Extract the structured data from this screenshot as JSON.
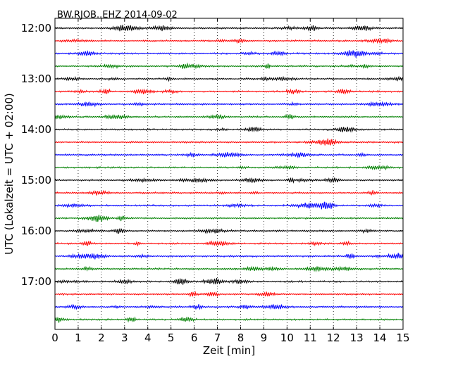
{
  "chart_data": {
    "type": "line",
    "title": "BW.RJOB..EHZ 2014-09-02",
    "xlabel": "Zeit  [min]",
    "ylabel": "UTC (Lokalzeit = UTC + 02:00)",
    "xlim": [
      0,
      15
    ],
    "xticks": [
      "0",
      "1",
      "2",
      "3",
      "4",
      "5",
      "6",
      "7",
      "8",
      "9",
      "10",
      "11",
      "12",
      "13",
      "14",
      "15"
    ],
    "yticks": [
      "12:00",
      "13:00",
      "14:00",
      "15:00",
      "16:00",
      "17:00"
    ],
    "grid": "vertical-dotted",
    "trace_colors": [
      "#000000",
      "#ff0000",
      "#0000ff",
      "#008000"
    ],
    "traces": [
      {
        "start": "12:00"
      },
      {
        "start": "12:15"
      },
      {
        "start": "12:30"
      },
      {
        "start": "12:45"
      },
      {
        "start": "13:00"
      },
      {
        "start": "13:15"
      },
      {
        "start": "13:30"
      },
      {
        "start": "13:45"
      },
      {
        "start": "14:00"
      },
      {
        "start": "14:15"
      },
      {
        "start": "14:30"
      },
      {
        "start": "14:45"
      },
      {
        "start": "15:00"
      },
      {
        "start": "15:15"
      },
      {
        "start": "15:30"
      },
      {
        "start": "15:45"
      },
      {
        "start": "16:00"
      },
      {
        "start": "16:15"
      },
      {
        "start": "16:30"
      },
      {
        "start": "16:45"
      },
      {
        "start": "17:00"
      },
      {
        "start": "17:15"
      },
      {
        "start": "17:30"
      },
      {
        "start": "17:45"
      }
    ]
  }
}
